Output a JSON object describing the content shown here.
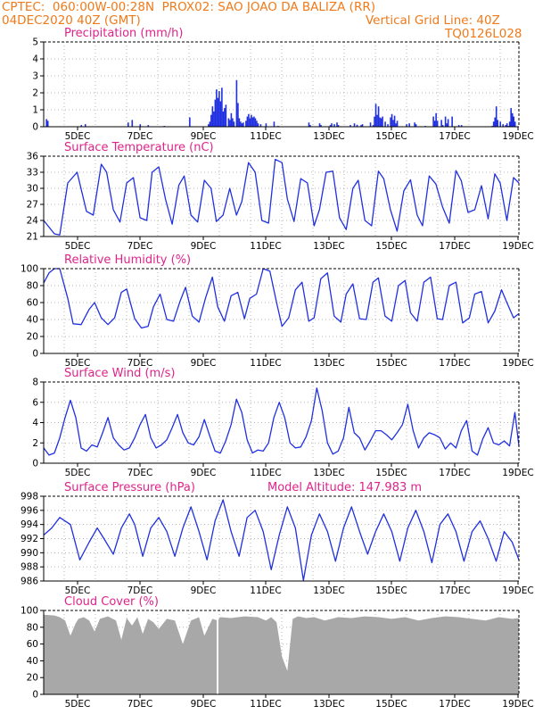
{
  "header": {
    "line1_left": "CPTEC:  060:00W-00:28N  PROX02: SAO JOAO DA BALIZA (RR)",
    "line2_left": "04DEC2020 40Z (GMT)",
    "line2_right": "Vertical Grid Line: 40Z",
    "line3_right": "TQ0126L028"
  },
  "colors": {
    "header": "#f07a1a",
    "title": "#e0238a",
    "series": "#2030e0",
    "cloud": "#a8a8a8",
    "grid": "#b4b4b4"
  },
  "chart_data": [
    {
      "type": "bar",
      "title": "Precipitation (mm/h)",
      "ylim": [
        0,
        5
      ],
      "yticks": [
        0,
        1,
        2,
        3,
        4,
        5
      ],
      "xlim": [
        0,
        355
      ],
      "xtick_labels": [
        "5DEC",
        "7DEC",
        "9DEC",
        "11DEC",
        "13DEC",
        "15DEC",
        "17DEC",
        "19DEC"
      ],
      "bars": [
        [
          2,
          0.45
        ],
        [
          3,
          0.35
        ],
        [
          28,
          0.1
        ],
        [
          31,
          0.15
        ],
        [
          63,
          0.25
        ],
        [
          66,
          0.4
        ],
        [
          72,
          0.15
        ],
        [
          78,
          0.1
        ],
        [
          90,
          0.05
        ],
        [
          109,
          0.55
        ],
        [
          123,
          0.15
        ],
        [
          124,
          0.3
        ],
        [
          125,
          0.7
        ],
        [
          126,
          1.2
        ],
        [
          127,
          0.9
        ],
        [
          128,
          1.6
        ],
        [
          129,
          2.2
        ],
        [
          130,
          1.7
        ],
        [
          131,
          2.1
        ],
        [
          132,
          1.5
        ],
        [
          133,
          2.3
        ],
        [
          134,
          0.9
        ],
        [
          135,
          1.1
        ],
        [
          136,
          1.3
        ],
        [
          138,
          0.5
        ],
        [
          139,
          0.4
        ],
        [
          140,
          0.8
        ],
        [
          141,
          0.5
        ],
        [
          142,
          0.3
        ],
        [
          144,
          2.75
        ],
        [
          145,
          1.4
        ],
        [
          146,
          0.5
        ],
        [
          147,
          0.3
        ],
        [
          148,
          0.2
        ],
        [
          149,
          0.25
        ],
        [
          151,
          0.35
        ],
        [
          152,
          0.6
        ],
        [
          153,
          0.75
        ],
        [
          154,
          0.5
        ],
        [
          155,
          0.7
        ],
        [
          156,
          0.55
        ],
        [
          157,
          0.6
        ],
        [
          158,
          0.5
        ],
        [
          159,
          0.35
        ],
        [
          160,
          0.2
        ],
        [
          162,
          0.15
        ],
        [
          166,
          0.2
        ],
        [
          172,
          0.3
        ],
        [
          175,
          0.05
        ],
        [
          198,
          0.25
        ],
        [
          199,
          0.1
        ],
        [
          206,
          0.2
        ],
        [
          207,
          0.1
        ],
        [
          214,
          0.1
        ],
        [
          215,
          0.2
        ],
        [
          217,
          0.15
        ],
        [
          219,
          0.25
        ],
        [
          220,
          0.1
        ],
        [
          229,
          0.1
        ],
        [
          232,
          0.2
        ],
        [
          234,
          0.12
        ],
        [
          237,
          0.1
        ],
        [
          238,
          0.15
        ],
        [
          244,
          0.25
        ],
        [
          246,
          0.1
        ],
        [
          247,
          0.6
        ],
        [
          248,
          1.35
        ],
        [
          249,
          0.7
        ],
        [
          250,
          1.2
        ],
        [
          251,
          0.55
        ],
        [
          252,
          0.5
        ],
        [
          253,
          0.6
        ],
        [
          255,
          0.3
        ],
        [
          257,
          0.15
        ],
        [
          259,
          0.55
        ],
        [
          260,
          0.75
        ],
        [
          261,
          0.4
        ],
        [
          262,
          0.65
        ],
        [
          263,
          0.2
        ],
        [
          264,
          0.35
        ],
        [
          271,
          0.15
        ],
        [
          273,
          0.2
        ],
        [
          277,
          0.25
        ],
        [
          278,
          0.15
        ],
        [
          285,
          0.05
        ],
        [
          291,
          0.6
        ],
        [
          292,
          0.35
        ],
        [
          293,
          0.8
        ],
        [
          294,
          0.35
        ],
        [
          297,
          0.4
        ],
        [
          298,
          0.1
        ],
        [
          300,
          0.6
        ],
        [
          301,
          0.2
        ],
        [
          302,
          0.45
        ],
        [
          305,
          0.6
        ],
        [
          310,
          0.1
        ],
        [
          312,
          0.1
        ],
        [
          335,
          0.05
        ],
        [
          336,
          0.3
        ],
        [
          337,
          0.55
        ],
        [
          338,
          1.2
        ],
        [
          339,
          0.4
        ],
        [
          341,
          0.3
        ],
        [
          343,
          0.15
        ],
        [
          345,
          0.1
        ],
        [
          346,
          0.2
        ],
        [
          347,
          0.05
        ],
        [
          348,
          0.3
        ],
        [
          349,
          1.1
        ],
        [
          350,
          0.8
        ],
        [
          351,
          0.6
        ],
        [
          352,
          0.3
        ]
      ]
    },
    {
      "type": "line",
      "title": "Surface Temperature (nC)",
      "ylim": [
        21,
        36
      ],
      "yticks": [
        21,
        24,
        27,
        30,
        33,
        36
      ],
      "xlim": [
        0,
        355
      ],
      "xtick_labels": [
        "5DEC",
        "7DEC",
        "9DEC",
        "11DEC",
        "13DEC",
        "15DEC",
        "17DEC",
        "19DEC"
      ],
      "x": [
        0,
        8,
        12,
        18,
        25,
        32,
        37,
        43,
        47,
        52,
        57,
        62,
        67,
        72,
        77,
        81,
        86,
        91,
        96,
        101,
        105,
        110,
        115,
        120,
        125,
        129,
        134,
        139,
        144,
        148,
        153,
        158,
        163,
        168,
        173,
        178,
        182,
        187,
        192,
        197,
        202,
        206,
        211,
        216,
        221,
        226,
        231,
        235,
        240,
        245,
        250,
        254,
        259,
        264,
        269,
        274,
        279,
        283,
        288,
        293,
        298,
        303,
        308,
        312,
        317,
        322,
        327,
        332,
        337,
        341,
        346,
        351,
        355
      ],
      "y": [
        24,
        21.5,
        21.3,
        31,
        33,
        25.7,
        25,
        34.5,
        33,
        26,
        23.7,
        31,
        32,
        24.5,
        24,
        33,
        34,
        28,
        23.3,
        30.6,
        32.3,
        25,
        23.7,
        31.5,
        30,
        23.8,
        25,
        30,
        25,
        27.5,
        34.8,
        33,
        24,
        23.5,
        35.4,
        34.8,
        28,
        23.8,
        31.8,
        31,
        23,
        26,
        33,
        33.2,
        24.5,
        22.3,
        30,
        31.5,
        24,
        23,
        33.2,
        31.8,
        26,
        22,
        29.5,
        31.6,
        25,
        23,
        32.3,
        30.8,
        26.5,
        23.5,
        33.3,
        31.4,
        25.5,
        26,
        30.5,
        24.3,
        32.7,
        31,
        24,
        32,
        31
      ]
    },
    {
      "type": "line",
      "title": "Relative Humidity (%)",
      "ylim": [
        0,
        100
      ],
      "yticks": [
        0,
        20,
        40,
        60,
        80,
        100
      ],
      "xlim": [
        0,
        355
      ],
      "xtick_labels": [
        "5DEC",
        "7DEC",
        "9DEC",
        "11DEC",
        "13DEC",
        "15DEC",
        "17DEC",
        "19DEC"
      ],
      "x": [
        0,
        4,
        8,
        12,
        18,
        22,
        28,
        34,
        38,
        43,
        48,
        53,
        58,
        62,
        68,
        73,
        78,
        82,
        87,
        92,
        97,
        102,
        106,
        111,
        116,
        121,
        126,
        130,
        135,
        140,
        145,
        150,
        154,
        159,
        164,
        169,
        174,
        178,
        183,
        188,
        193,
        198,
        202,
        207,
        212,
        217,
        222,
        226,
        231,
        236,
        241,
        246,
        250,
        255,
        260,
        265,
        270,
        274,
        279,
        284,
        289,
        294,
        298,
        303,
        308,
        313,
        318,
        322,
        327,
        332,
        337,
        342,
        346,
        351,
        355
      ],
      "y": [
        83,
        95,
        100,
        100,
        65,
        35,
        34,
        52,
        60,
        42,
        34,
        42,
        72,
        76,
        41,
        30,
        32,
        55,
        70,
        40,
        38,
        62,
        78,
        44,
        37,
        66,
        90,
        55,
        38,
        68,
        72,
        41,
        65,
        70,
        100,
        97,
        60,
        32,
        42,
        75,
        84,
        38,
        42,
        88,
        95,
        44,
        37,
        70,
        82,
        41,
        40,
        84,
        89,
        44,
        38,
        80,
        86,
        48,
        38,
        84,
        90,
        41,
        40,
        80,
        84,
        36,
        42,
        70,
        73,
        36,
        50,
        75,
        60,
        42,
        47
      ]
    },
    {
      "type": "line",
      "title": "Surface Wind (m/s)",
      "ylim": [
        0,
        8
      ],
      "yticks": [
        0,
        2,
        4,
        6,
        8
      ],
      "xlim": [
        0,
        355
      ],
      "xtick_labels": [
        "5DEC",
        "7DEC",
        "9DEC",
        "11DEC",
        "13DEC",
        "15DEC",
        "17DEC",
        "19DEC"
      ],
      "x": [
        0,
        4,
        8,
        12,
        16,
        20,
        24,
        28,
        32,
        36,
        40,
        44,
        48,
        52,
        56,
        60,
        64,
        68,
        72,
        76,
        80,
        84,
        88,
        92,
        96,
        100,
        104,
        108,
        112,
        116,
        120,
        124,
        128,
        132,
        136,
        140,
        144,
        148,
        152,
        156,
        160,
        164,
        168,
        172,
        176,
        180,
        184,
        188,
        192,
        196,
        200,
        204,
        208,
        212,
        216,
        220,
        224,
        228,
        232,
        236,
        240,
        244,
        248,
        252,
        256,
        260,
        264,
        268,
        272,
        276,
        280,
        284,
        288,
        292,
        296,
        300,
        304,
        308,
        312,
        316,
        320,
        324,
        328,
        332,
        336,
        340,
        344,
        348,
        352,
        355
      ],
      "y": [
        1.5,
        0.8,
        1,
        2.5,
        4.5,
        6.2,
        4.5,
        1.5,
        1.2,
        1.8,
        1.6,
        3,
        4.5,
        2.5,
        1.8,
        1.3,
        1.5,
        2.5,
        3.8,
        4.8,
        2.5,
        1.5,
        1.8,
        2.3,
        3.5,
        4.8,
        3,
        2,
        1.8,
        2.6,
        4.3,
        2.7,
        1.2,
        1,
        2.2,
        3.8,
        6.3,
        5,
        2.3,
        1,
        1.3,
        1.2,
        2,
        4.5,
        6,
        4.5,
        2,
        1.5,
        1.6,
        2.6,
        4.2,
        7.4,
        5.2,
        2,
        0.9,
        1.2,
        2.5,
        5.5,
        3,
        2.5,
        1.3,
        2.2,
        3.2,
        3.2,
        2.8,
        2.3,
        3,
        3.8,
        5.8,
        3.2,
        1.5,
        2.5,
        3,
        2.8,
        2.5,
        1.4,
        2,
        1.5,
        3.2,
        4.2,
        1.2,
        0.8,
        2.4,
        3.5,
        2,
        1.8,
        2.2,
        1.7,
        5,
        1.7
      ]
    },
    {
      "type": "line",
      "title": "Surface Pressure (hPa)",
      "annotation": "Model Altitude: 147.983 m",
      "ylim": [
        986,
        998
      ],
      "yticks": [
        986,
        988,
        990,
        992,
        994,
        996,
        998
      ],
      "xlim": [
        0,
        355
      ],
      "xtick_labels": [
        "5DEC",
        "7DEC",
        "9DEC",
        "11DEC",
        "13DEC",
        "15DEC",
        "17DEC",
        "19DEC"
      ],
      "x": [
        0,
        6,
        12,
        20,
        27,
        34,
        40,
        45,
        52,
        58,
        64,
        68,
        74,
        80,
        86,
        92,
        98,
        104,
        110,
        116,
        122,
        128,
        134,
        140,
        146,
        152,
        158,
        164,
        170,
        176,
        182,
        188,
        194,
        200,
        206,
        212,
        218,
        224,
        230,
        236,
        242,
        248,
        254,
        260,
        266,
        272,
        278,
        284,
        290,
        296,
        302,
        308,
        314,
        320,
        326,
        332,
        338,
        344,
        350,
        355
      ],
      "y": [
        992.5,
        993.5,
        995,
        994,
        989,
        991.5,
        993.5,
        992,
        989.8,
        993.5,
        995.5,
        994,
        989.5,
        993.5,
        995,
        993,
        989.5,
        993.5,
        996.5,
        993,
        989,
        994.5,
        997.5,
        993,
        989.5,
        995,
        996,
        993,
        987.6,
        992.5,
        996.5,
        993.5,
        986.1,
        992.5,
        995.5,
        993,
        988.8,
        993.5,
        996.5,
        993,
        989.8,
        993,
        995.5,
        993,
        988.8,
        993.5,
        996,
        993,
        988.6,
        994,
        995.5,
        993,
        988.8,
        993,
        994.5,
        992,
        988.8,
        993,
        991.5,
        989
      ]
    },
    {
      "type": "area",
      "title": "Cloud Cover (%)",
      "ylim": [
        0,
        100
      ],
      "yticks": [
        0,
        20,
        40,
        60,
        80,
        100
      ],
      "xlim": [
        0,
        355
      ],
      "xtick_labels": [
        "5DEC",
        "7DEC",
        "9DEC",
        "11DEC",
        "13DEC",
        "15DEC",
        "17DEC",
        "19DEC"
      ],
      "x": [
        0,
        8,
        12,
        16,
        20,
        24,
        26,
        30,
        34,
        38,
        42,
        48,
        54,
        58,
        62,
        66,
        70,
        74,
        78,
        82,
        86,
        92,
        98,
        104,
        110,
        116,
        120,
        126,
        130,
        132,
        140,
        150,
        160,
        166,
        170,
        174,
        178,
        182,
        186,
        190,
        196,
        202,
        210,
        220,
        230,
        240,
        250,
        260,
        270,
        280,
        290,
        300,
        310,
        320,
        330,
        340,
        350,
        355
      ],
      "y": [
        95,
        94,
        92,
        88,
        70,
        85,
        90,
        92,
        88,
        75,
        90,
        93,
        88,
        65,
        91,
        82,
        92,
        72,
        90,
        86,
        78,
        90,
        88,
        60,
        88,
        92,
        70,
        90,
        88,
        92,
        91,
        93,
        92,
        88,
        92,
        86,
        45,
        28,
        90,
        93,
        91,
        92,
        88,
        92,
        91,
        93,
        92,
        90,
        92,
        88,
        91,
        93,
        92,
        90,
        88,
        92,
        90,
        91
      ]
    }
  ]
}
